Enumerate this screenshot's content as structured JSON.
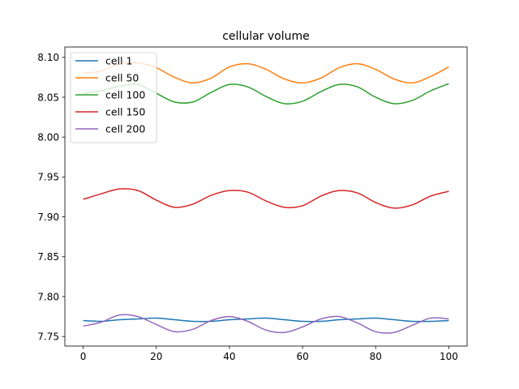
{
  "chart_data": {
    "type": "line",
    "title": "cellular volume",
    "xlabel": "",
    "ylabel": "",
    "xlim": [
      -5,
      105
    ],
    "ylim": [
      7.738,
      8.113
    ],
    "x_ticks": [
      0,
      20,
      40,
      60,
      80,
      100
    ],
    "x_tick_labels": [
      "0",
      "20",
      "40",
      "60",
      "80",
      "100"
    ],
    "y_ticks": [
      7.75,
      7.8,
      7.85,
      7.9,
      7.95,
      8.0,
      8.05,
      8.1
    ],
    "y_tick_labels": [
      "7.75",
      "7.80",
      "7.85",
      "7.90",
      "7.95",
      "8.00",
      "8.05",
      "8.10"
    ],
    "grid": false,
    "legend": "top-left",
    "x": [
      0,
      5,
      10,
      15,
      20,
      25,
      30,
      35,
      40,
      45,
      50,
      55,
      60,
      65,
      70,
      75,
      80,
      85,
      90,
      95,
      100
    ],
    "series": [
      {
        "name": "cell 1",
        "color": "#1f77b4",
        "values": [
          7.77,
          7.769,
          7.771,
          7.772,
          7.773,
          7.771,
          7.769,
          7.769,
          7.771,
          7.772,
          7.773,
          7.771,
          7.769,
          7.769,
          7.771,
          7.772,
          7.773,
          7.771,
          7.769,
          7.769,
          7.77
        ]
      },
      {
        "name": "cell 50",
        "color": "#ff7f0e",
        "values": [
          8.08,
          8.083,
          8.092,
          8.093,
          8.087,
          8.075,
          8.068,
          8.074,
          8.088,
          8.092,
          8.085,
          8.073,
          8.068,
          8.074,
          8.087,
          8.092,
          8.085,
          8.073,
          8.068,
          8.076,
          8.088
        ]
      },
      {
        "name": "cell 100",
        "color": "#2ca02c",
        "values": [
          8.055,
          8.058,
          8.064,
          8.066,
          8.055,
          8.044,
          8.044,
          8.056,
          8.066,
          8.063,
          8.051,
          8.042,
          8.045,
          8.057,
          8.066,
          8.063,
          8.05,
          8.042,
          8.046,
          8.058,
          8.067
        ]
      },
      {
        "name": "cell 150",
        "color": "#d62728",
        "values": [
          7.922,
          7.929,
          7.935,
          7.933,
          7.921,
          7.912,
          7.916,
          7.927,
          7.933,
          7.931,
          7.92,
          7.912,
          7.914,
          7.926,
          7.933,
          7.93,
          7.918,
          7.911,
          7.915,
          7.926,
          7.932
        ]
      },
      {
        "name": "cell 200",
        "color": "#9467bd",
        "values": [
          7.763,
          7.768,
          7.777,
          7.775,
          7.765,
          7.756,
          7.759,
          7.77,
          7.775,
          7.769,
          7.758,
          7.755,
          7.762,
          7.772,
          7.775,
          7.767,
          7.756,
          7.755,
          7.764,
          7.773,
          7.772
        ]
      }
    ]
  }
}
